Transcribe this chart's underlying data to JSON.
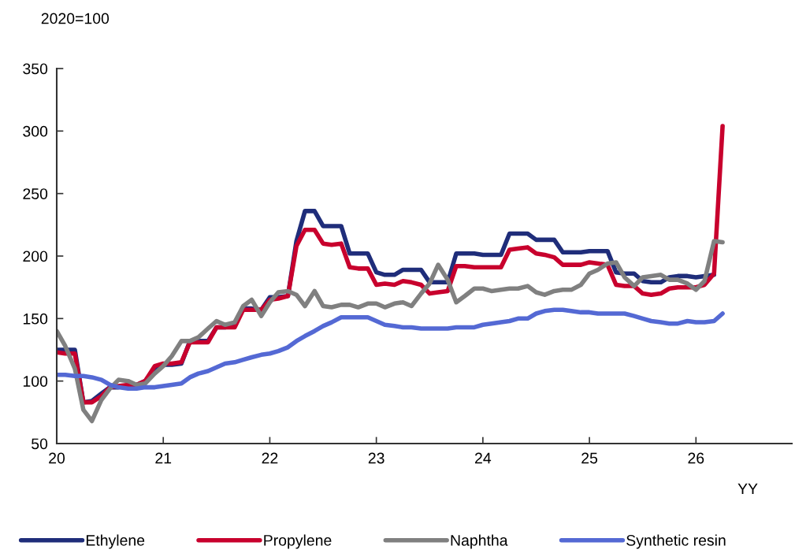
{
  "chart_data": {
    "type": "line",
    "ylabel": "2020=100",
    "xlabel": "YY",
    "x": [
      20.0,
      20.08,
      20.17,
      20.25,
      20.33,
      20.42,
      20.5,
      20.58,
      20.67,
      20.75,
      20.83,
      20.92,
      21.0,
      21.08,
      21.17,
      21.25,
      21.33,
      21.42,
      21.5,
      21.58,
      21.67,
      21.75,
      21.83,
      21.92,
      22.0,
      22.08,
      22.17,
      22.25,
      22.33,
      22.42,
      22.5,
      22.58,
      22.67,
      22.75,
      22.83,
      22.92,
      23.0,
      23.08,
      23.17,
      23.25,
      23.33,
      23.42,
      23.5,
      23.58,
      23.67,
      23.75,
      23.83,
      23.92,
      24.0,
      24.08,
      24.17,
      24.25,
      24.33,
      24.42,
      24.5,
      24.58,
      24.67,
      24.75,
      24.83,
      24.92,
      25.0,
      25.08,
      25.17,
      25.25,
      25.33,
      25.42,
      25.5,
      25.58,
      25.67,
      25.75,
      25.83,
      25.92,
      26.0,
      26.08,
      26.17,
      26.25
    ],
    "series": [
      {
        "name": "Ethylene",
        "color": "#1f2d7a",
        "values": [
          125,
          125,
          125,
          83,
          84,
          90,
          95,
          95,
          96,
          97,
          100,
          110,
          113,
          113,
          114,
          132,
          132,
          132,
          143,
          143,
          145,
          158,
          158,
          157,
          167,
          167,
          168,
          212,
          236,
          236,
          224,
          224,
          224,
          202,
          202,
          202,
          187,
          185,
          185,
          189,
          189,
          189,
          179,
          179,
          179,
          202,
          202,
          202,
          201,
          201,
          201,
          218,
          218,
          218,
          213,
          213,
          213,
          203,
          203,
          203,
          204,
          204,
          204,
          187,
          186,
          186,
          180,
          179,
          179,
          183,
          184,
          184,
          183,
          184,
          185,
          null
        ]
      },
      {
        "name": "Propylene",
        "color": "#c8002d",
        "values": [
          123,
          122,
          122,
          83,
          83,
          88,
          95,
          96,
          97,
          97,
          100,
          112,
          114,
          114,
          115,
          131,
          131,
          131,
          143,
          143,
          143,
          157,
          157,
          157,
          165,
          166,
          168,
          208,
          221,
          221,
          210,
          209,
          210,
          191,
          190,
          190,
          177,
          178,
          177,
          180,
          179,
          177,
          170,
          171,
          172,
          192,
          192,
          191,
          191,
          191,
          191,
          205,
          206,
          207,
          202,
          201,
          199,
          193,
          193,
          193,
          195,
          194,
          193,
          177,
          176,
          176,
          170,
          169,
          170,
          174,
          175,
          175,
          175,
          177,
          186,
          304
        ]
      },
      {
        "name": "Naphtha",
        "color": "#808080",
        "values": [
          140,
          128,
          110,
          77,
          68,
          85,
          94,
          101,
          100,
          97,
          98,
          106,
          112,
          120,
          132,
          132,
          135,
          142,
          148,
          145,
          147,
          160,
          165,
          152,
          163,
          171,
          172,
          169,
          160,
          172,
          160,
          159,
          161,
          161,
          159,
          162,
          162,
          159,
          162,
          163,
          160,
          170,
          178,
          193,
          181,
          163,
          168,
          174,
          174,
          172,
          173,
          174,
          174,
          176,
          171,
          169,
          172,
          173,
          173,
          177,
          186,
          189,
          194,
          195,
          183,
          176,
          183,
          184,
          185,
          181,
          181,
          178,
          173,
          180,
          212,
          211
        ]
      },
      {
        "name": "Synthetic resin",
        "color": "#5469d4",
        "values": [
          105,
          105,
          104,
          104,
          103,
          101,
          97,
          95,
          94,
          94,
          95,
          95,
          96,
          97,
          98,
          103,
          106,
          108,
          111,
          114,
          115,
          117,
          119,
          121,
          122,
          124,
          127,
          132,
          136,
          140,
          144,
          147,
          151,
          151,
          151,
          151,
          148,
          145,
          144,
          143,
          143,
          142,
          142,
          142,
          142,
          143,
          143,
          143,
          145,
          146,
          147,
          148,
          150,
          150,
          154,
          156,
          157,
          157,
          156,
          155,
          155,
          154,
          154,
          154,
          154,
          152,
          150,
          148,
          147,
          146,
          146,
          148,
          147,
          147,
          148,
          154
        ]
      }
    ],
    "xlim": [
      20,
      26.9
    ],
    "xticks": [
      20,
      21,
      22,
      23,
      24,
      25,
      26
    ],
    "ylim": [
      50,
      350
    ],
    "yticks": [
      50,
      100,
      150,
      200,
      250,
      300,
      350
    ],
    "grid": false,
    "legend": "bottom",
    "marker": "none",
    "line_style": "solid"
  }
}
